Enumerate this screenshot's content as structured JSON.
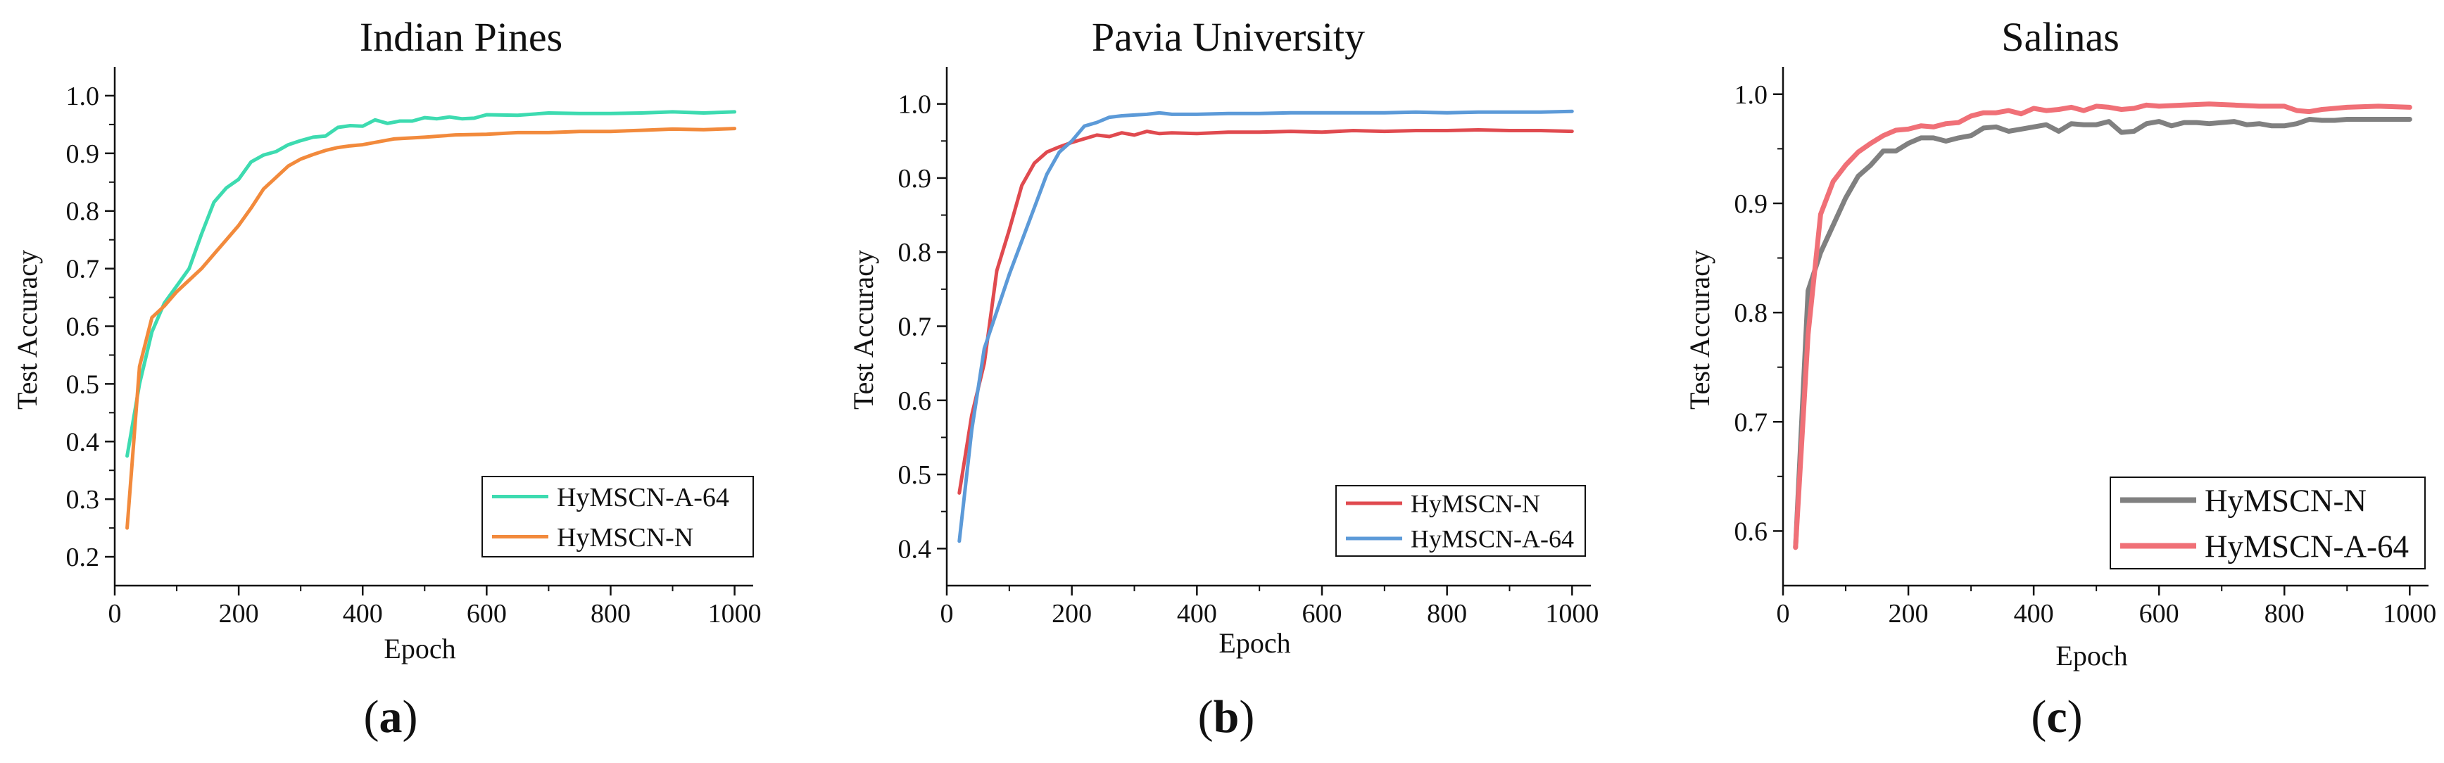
{
  "chart_data": [
    {
      "type": "line",
      "panel_label": "a",
      "title": "Indian Pines",
      "xlabel": "Epoch",
      "ylabel": "Test Accuracy",
      "xlim": [
        0,
        1030
      ],
      "ylim": [
        0.15,
        1.05
      ],
      "xticks": [
        0,
        200,
        400,
        600,
        800,
        1000
      ],
      "yticks": [
        0.2,
        0.3,
        0.4,
        0.5,
        0.6,
        0.7,
        0.8,
        0.9,
        1.0
      ],
      "ytick_labels": [
        "0.2",
        "0.3",
        "0.4",
        "0.5",
        "0.6",
        "0.7",
        "0.8",
        "0.9",
        "1.0"
      ],
      "legend_position": "bottom-right",
      "series": [
        {
          "name": "HyMSCN-A-64",
          "color": "#3ddbb0",
          "x": [
            20,
            40,
            60,
            80,
            100,
            120,
            140,
            160,
            180,
            200,
            220,
            240,
            260,
            280,
            300,
            320,
            340,
            360,
            380,
            400,
            420,
            440,
            460,
            480,
            500,
            520,
            540,
            560,
            580,
            600,
            650,
            700,
            750,
            800,
            850,
            900,
            950,
            1000
          ],
          "y": [
            0.375,
            0.5,
            0.59,
            0.64,
            0.67,
            0.7,
            0.76,
            0.815,
            0.84,
            0.855,
            0.885,
            0.897,
            0.903,
            0.915,
            0.922,
            0.928,
            0.93,
            0.945,
            0.948,
            0.947,
            0.958,
            0.952,
            0.956,
            0.956,
            0.962,
            0.96,
            0.963,
            0.96,
            0.961,
            0.967,
            0.966,
            0.97,
            0.969,
            0.969,
            0.97,
            0.972,
            0.97,
            0.972
          ]
        },
        {
          "name": "HyMSCN-N",
          "color": "#f28a3c",
          "x": [
            20,
            40,
            60,
            80,
            100,
            120,
            140,
            160,
            180,
            200,
            220,
            240,
            260,
            280,
            300,
            320,
            340,
            360,
            380,
            400,
            450,
            500,
            550,
            600,
            650,
            700,
            750,
            800,
            850,
            900,
            950,
            1000
          ],
          "y": [
            0.25,
            0.53,
            0.615,
            0.635,
            0.66,
            0.68,
            0.7,
            0.725,
            0.75,
            0.775,
            0.805,
            0.838,
            0.858,
            0.878,
            0.89,
            0.898,
            0.905,
            0.91,
            0.913,
            0.915,
            0.925,
            0.928,
            0.932,
            0.933,
            0.936,
            0.936,
            0.938,
            0.938,
            0.94,
            0.942,
            0.941,
            0.943
          ]
        }
      ]
    },
    {
      "type": "line",
      "panel_label": "b",
      "title": "Pavia University",
      "xlabel": "Epoch",
      "ylabel": "Test Accuracy",
      "xlim": [
        0,
        1030
      ],
      "ylim": [
        0.35,
        1.05
      ],
      "xticks": [
        0,
        200,
        400,
        600,
        800,
        1000
      ],
      "yticks": [
        0.4,
        0.5,
        0.6,
        0.7,
        0.8,
        0.9,
        1.0
      ],
      "ytick_labels": [
        "0.4",
        "0.5",
        "0.6",
        "0.7",
        "0.8",
        "0.9",
        "1.0"
      ],
      "legend_position": "bottom-right",
      "series": [
        {
          "name": "HyMSCN-N",
          "color": "#e04a4f",
          "x": [
            20,
            40,
            60,
            80,
            100,
            120,
            140,
            160,
            180,
            200,
            220,
            240,
            260,
            280,
            300,
            320,
            340,
            360,
            400,
            450,
            500,
            550,
            600,
            650,
            700,
            750,
            800,
            850,
            900,
            950,
            1000
          ],
          "y": [
            0.475,
            0.58,
            0.65,
            0.775,
            0.83,
            0.89,
            0.92,
            0.935,
            0.942,
            0.948,
            0.953,
            0.958,
            0.956,
            0.961,
            0.958,
            0.963,
            0.96,
            0.961,
            0.96,
            0.962,
            0.962,
            0.963,
            0.962,
            0.964,
            0.963,
            0.964,
            0.964,
            0.965,
            0.964,
            0.964,
            0.963
          ]
        },
        {
          "name": "HyMSCN-A-64",
          "color": "#5c9ad8",
          "x": [
            20,
            40,
            60,
            80,
            100,
            120,
            140,
            160,
            180,
            200,
            220,
            240,
            260,
            280,
            300,
            320,
            340,
            360,
            400,
            450,
            500,
            550,
            600,
            650,
            700,
            750,
            800,
            850,
            900,
            950,
            1000
          ],
          "y": [
            0.41,
            0.56,
            0.67,
            0.72,
            0.77,
            0.815,
            0.86,
            0.905,
            0.935,
            0.95,
            0.97,
            0.975,
            0.982,
            0.984,
            0.985,
            0.986,
            0.988,
            0.986,
            0.986,
            0.987,
            0.987,
            0.988,
            0.988,
            0.988,
            0.988,
            0.989,
            0.988,
            0.989,
            0.989,
            0.989,
            0.99
          ]
        }
      ]
    },
    {
      "type": "line",
      "panel_label": "c",
      "title": "Salinas",
      "xlabel": "Epoch",
      "ylabel": "Test Accuracy",
      "xlim": [
        0,
        1030
      ],
      "ylim": [
        0.55,
        1.025
      ],
      "xticks": [
        0,
        200,
        400,
        600,
        800,
        1000
      ],
      "yticks": [
        0.6,
        0.7,
        0.8,
        0.9,
        1.0
      ],
      "ytick_labels": [
        "0.6",
        "0.7",
        "0.8",
        "0.9",
        "1.0"
      ],
      "legend_position": "bottom-right",
      "series": [
        {
          "name": "HyMSCN-N",
          "color": "#808080",
          "x": [
            20,
            40,
            60,
            80,
            100,
            120,
            140,
            160,
            180,
            200,
            220,
            240,
            260,
            280,
            300,
            320,
            340,
            360,
            380,
            400,
            420,
            440,
            460,
            480,
            500,
            520,
            540,
            560,
            580,
            600,
            620,
            640,
            660,
            680,
            700,
            720,
            740,
            760,
            780,
            800,
            820,
            840,
            860,
            880,
            900,
            950,
            1000
          ],
          "y": [
            0.585,
            0.82,
            0.855,
            0.88,
            0.905,
            0.925,
            0.935,
            0.948,
            0.948,
            0.955,
            0.96,
            0.96,
            0.957,
            0.96,
            0.962,
            0.969,
            0.97,
            0.966,
            0.968,
            0.97,
            0.972,
            0.966,
            0.973,
            0.972,
            0.972,
            0.975,
            0.965,
            0.966,
            0.973,
            0.975,
            0.971,
            0.974,
            0.974,
            0.973,
            0.974,
            0.975,
            0.972,
            0.973,
            0.971,
            0.971,
            0.973,
            0.977,
            0.976,
            0.976,
            0.977,
            0.977,
            0.977
          ]
        },
        {
          "name": "HyMSCN-A-64",
          "color": "#f07077",
          "x": [
            20,
            40,
            60,
            80,
            100,
            120,
            140,
            160,
            180,
            200,
            220,
            240,
            260,
            280,
            300,
            320,
            340,
            360,
            380,
            400,
            420,
            440,
            460,
            480,
            500,
            520,
            540,
            560,
            580,
            600,
            640,
            680,
            720,
            760,
            800,
            820,
            840,
            860,
            880,
            900,
            950,
            1000
          ],
          "y": [
            0.585,
            0.78,
            0.89,
            0.92,
            0.935,
            0.947,
            0.955,
            0.962,
            0.967,
            0.968,
            0.971,
            0.97,
            0.973,
            0.974,
            0.98,
            0.983,
            0.983,
            0.985,
            0.982,
            0.987,
            0.985,
            0.986,
            0.988,
            0.985,
            0.989,
            0.988,
            0.986,
            0.987,
            0.99,
            0.989,
            0.99,
            0.991,
            0.99,
            0.989,
            0.989,
            0.985,
            0.984,
            0.986,
            0.987,
            0.988,
            0.989,
            0.988
          ]
        }
      ]
    }
  ]
}
